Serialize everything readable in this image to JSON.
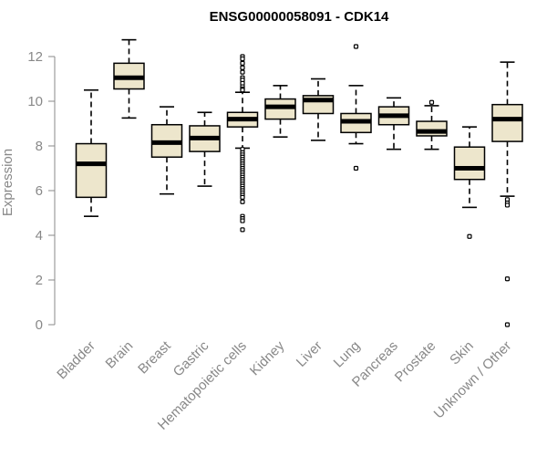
{
  "chart_data": {
    "type": "boxplot",
    "title": "ENSG00000058091 - CDK14",
    "ylabel": "Expression",
    "xlabel": "",
    "ylim": [
      0,
      12
    ],
    "yticks": [
      0,
      2,
      4,
      6,
      8,
      10,
      12
    ],
    "grid": false,
    "colors": {
      "box_fill": "#EDE6CC",
      "box_stroke": "#000000",
      "median": "#000000",
      "axis_text": "#888888"
    },
    "categories": [
      "Bladder",
      "Brain",
      "Breast",
      "Gastric",
      "Hematopoietic cells",
      "Kidney",
      "Liver",
      "Lung",
      "Pancreas",
      "Prostate",
      "Skin",
      "Unknown / Other"
    ],
    "boxes": [
      {
        "label": "Bladder",
        "whisker_low": 4.85,
        "q1": 5.7,
        "median": 7.2,
        "q3": 8.1,
        "whisker_high": 10.5,
        "outliers": []
      },
      {
        "label": "Brain",
        "whisker_low": 9.25,
        "q1": 10.55,
        "median": 11.05,
        "q3": 11.7,
        "whisker_high": 12.75,
        "outliers": []
      },
      {
        "label": "Breast",
        "whisker_low": 5.85,
        "q1": 7.5,
        "median": 8.15,
        "q3": 8.95,
        "whisker_high": 9.75,
        "outliers": []
      },
      {
        "label": "Gastric",
        "whisker_low": 6.2,
        "q1": 7.75,
        "median": 8.35,
        "q3": 8.9,
        "whisker_high": 9.5,
        "outliers": []
      },
      {
        "label": "Hematopoietic cells",
        "whisker_low": 7.9,
        "q1": 8.85,
        "median": 9.2,
        "q3": 9.5,
        "whisker_high": 10.4,
        "outliers": [
          12.0,
          11.9,
          11.7,
          11.5,
          11.3,
          11.05,
          10.95,
          10.8,
          10.65,
          10.55,
          10.5,
          7.85,
          7.7,
          7.6,
          7.5,
          7.4,
          7.3,
          7.2,
          7.1,
          7.0,
          6.9,
          6.8,
          6.7,
          6.6,
          6.5,
          6.4,
          6.3,
          6.2,
          6.1,
          6.0,
          5.9,
          5.8,
          5.7,
          5.5,
          4.85,
          4.75,
          4.65,
          4.25
        ]
      },
      {
        "label": "Kidney",
        "whisker_low": 8.4,
        "q1": 9.2,
        "median": 9.75,
        "q3": 10.1,
        "whisker_high": 10.7,
        "outliers": []
      },
      {
        "label": "Liver",
        "whisker_low": 8.25,
        "q1": 9.45,
        "median": 10.05,
        "q3": 10.25,
        "whisker_high": 11.0,
        "outliers": []
      },
      {
        "label": "Lung",
        "whisker_low": 8.1,
        "q1": 8.6,
        "median": 9.1,
        "q3": 9.45,
        "whisker_high": 10.7,
        "outliers": [
          12.45,
          7.0
        ]
      },
      {
        "label": "Pancreas",
        "whisker_low": 7.85,
        "q1": 8.95,
        "median": 9.35,
        "q3": 9.75,
        "whisker_high": 10.15,
        "outliers": []
      },
      {
        "label": "Prostate",
        "whisker_low": 7.85,
        "q1": 8.45,
        "median": 8.65,
        "q3": 9.1,
        "whisker_high": 9.8,
        "outliers": [
          9.95
        ]
      },
      {
        "label": "Skin",
        "whisker_low": 5.25,
        "q1": 6.5,
        "median": 7.0,
        "q3": 7.95,
        "whisker_high": 8.85,
        "outliers": [
          3.95
        ]
      },
      {
        "label": "Unknown / Other",
        "whisker_low": 5.75,
        "q1": 8.2,
        "median": 9.2,
        "q3": 9.85,
        "whisker_high": 11.75,
        "outliers": [
          5.6,
          5.45,
          5.35,
          2.05,
          0.0
        ]
      }
    ]
  }
}
